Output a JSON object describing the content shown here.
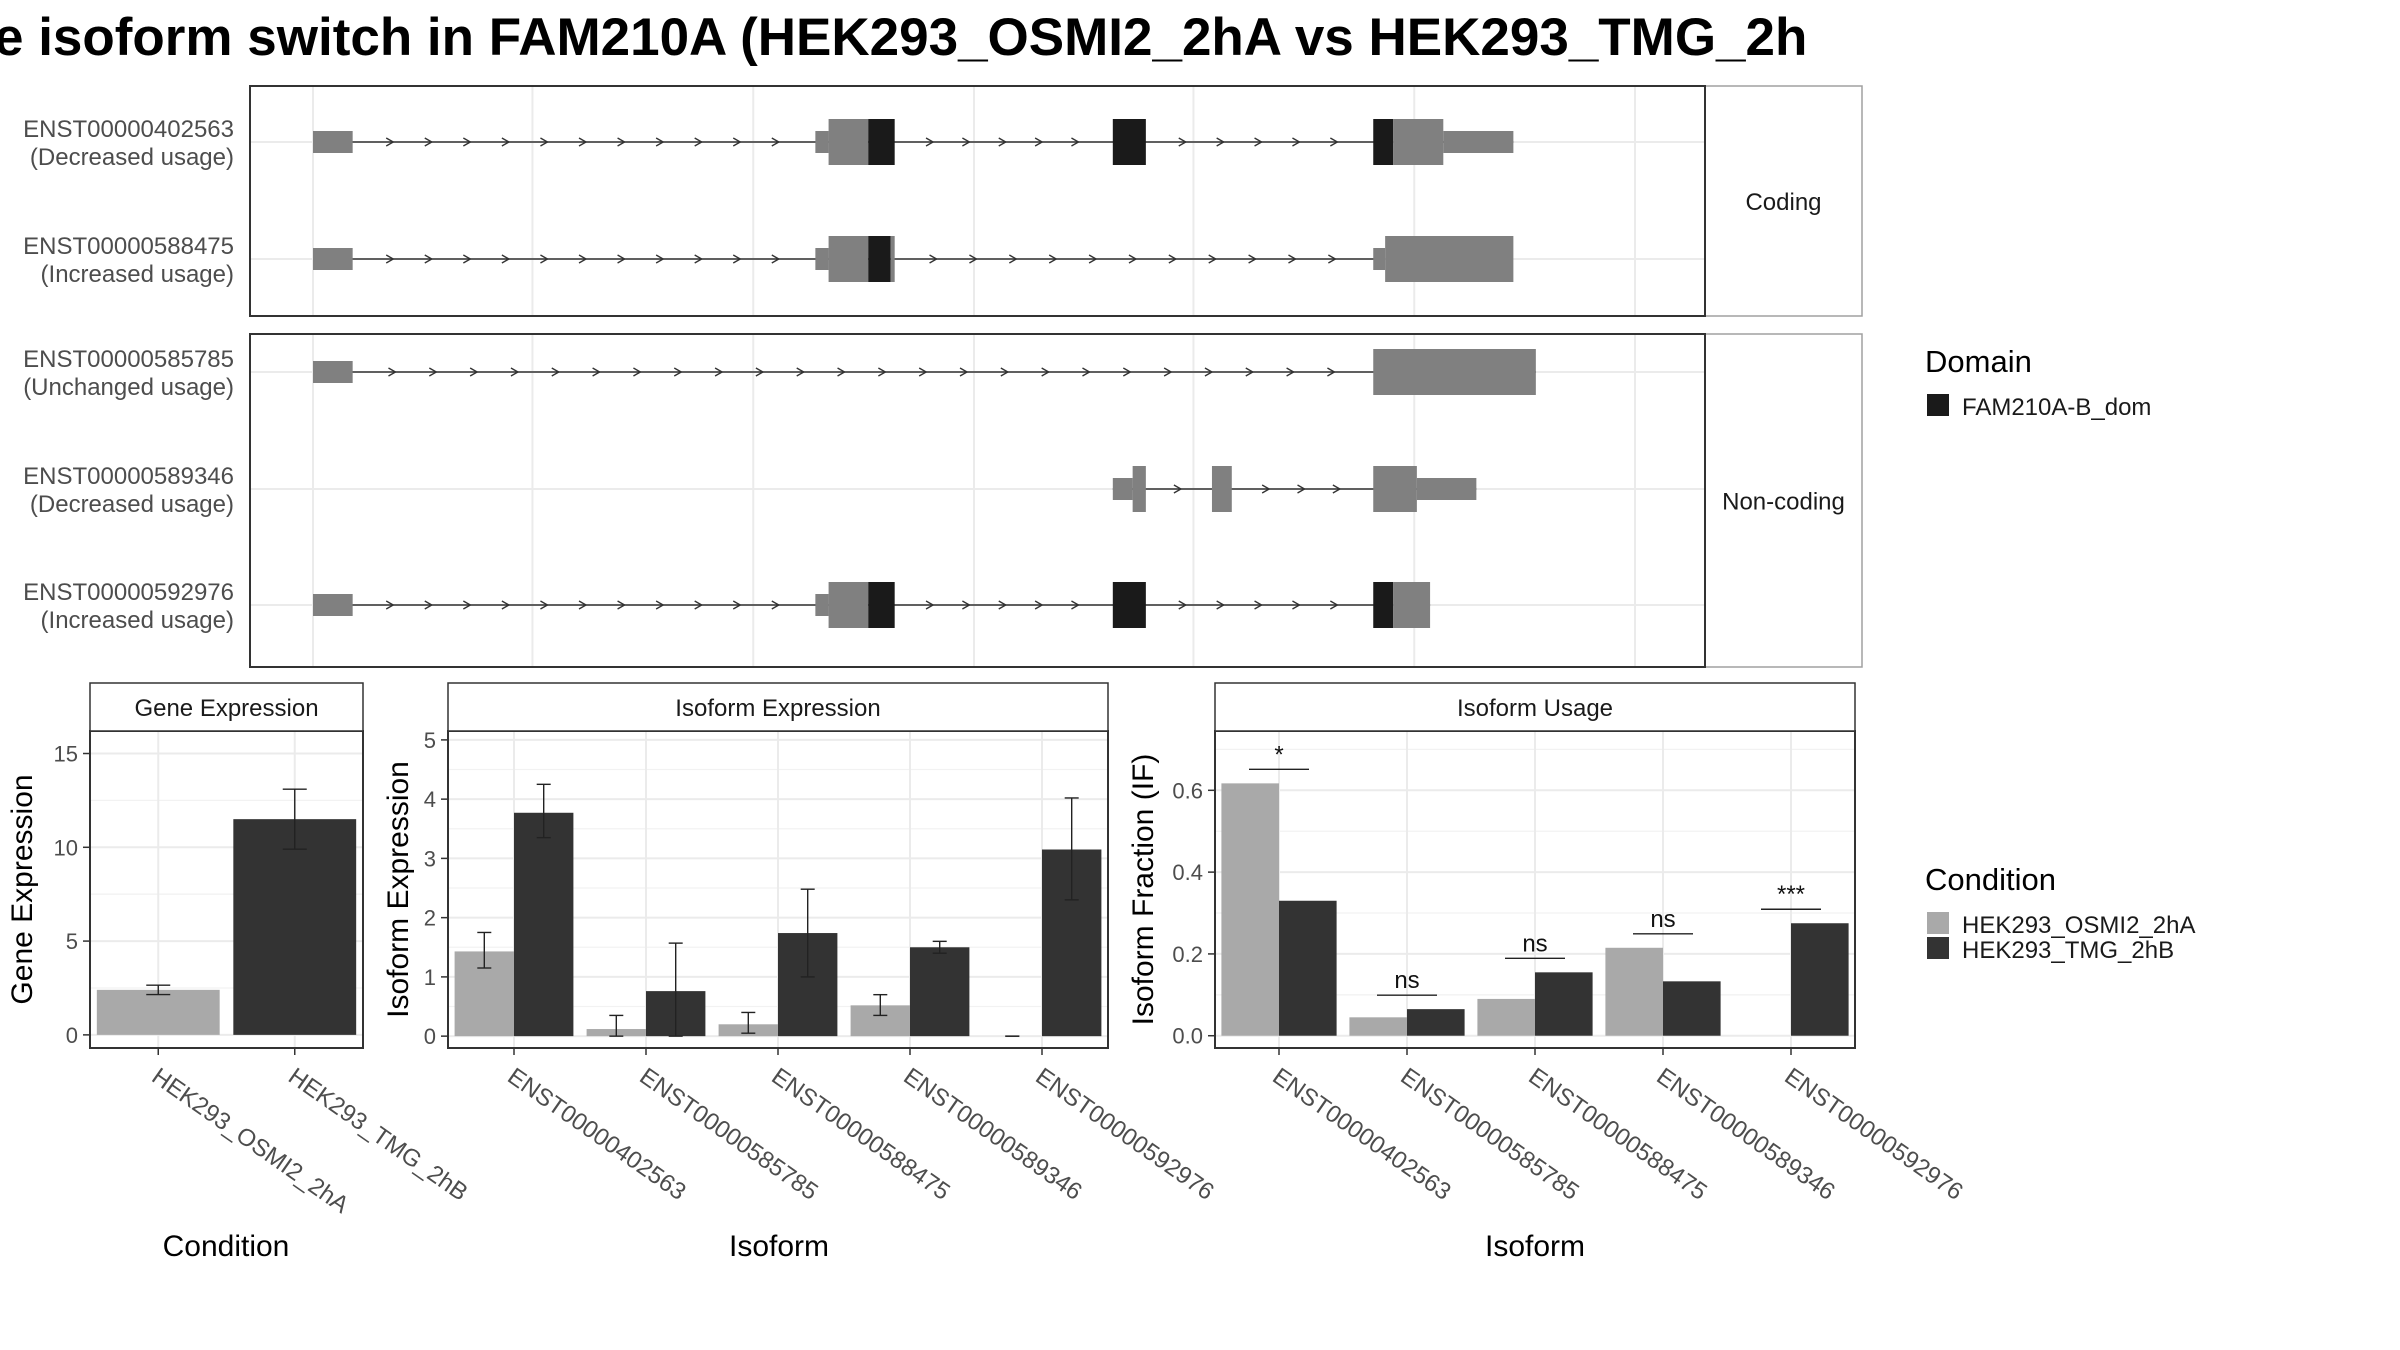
{
  "title": "e isoform switch in FAM210A (HEK293_OSMI2_2hA vs HEK293_TMG_2h",
  "colors": {
    "exon": "#808080",
    "domain": "#1a1a1a",
    "cond_a": "#a9a9a9",
    "cond_b": "#333333",
    "panel_border": "#333333",
    "strip_border": "#a0a0a0",
    "grid": "#ebebeb"
  },
  "chart_data": [
    {
      "type": "gene-structure",
      "x_range": [
        0,
        1000
      ],
      "facets": [
        {
          "label": "Coding",
          "transcripts": [
            {
              "id": "ENST00000402563",
              "usage": "(Decreased usage)",
              "span": [
                0,
                908
              ],
              "exons": [
                [
                  0,
                  30,
                  "s"
                ],
                [
                  380,
                  390,
                  "s"
                ],
                [
                  390,
                  420,
                  "t"
                ],
                [
                  420,
                  440,
                  "d"
                ],
                [
                  605,
                  630,
                  "d"
                ],
                [
                  802,
                  817,
                  "d"
                ],
                [
                  817,
                  855,
                  "t"
                ],
                [
                  855,
                  908,
                  "s"
                ]
              ],
              "arrow_dir": 1
            },
            {
              "id": "ENST00000588475",
              "usage": "(Increased usage)",
              "span": [
                0,
                811
              ],
              "exons": [
                [
                  0,
                  30,
                  "s"
                ],
                [
                  380,
                  390,
                  "s"
                ],
                [
                  390,
                  420,
                  "t"
                ],
                [
                  420,
                  437,
                  "d"
                ],
                [
                  437,
                  440,
                  "t"
                ],
                [
                  802,
                  811,
                  "s"
                ],
                [
                  811,
                  811,
                  "s"
                ]
              ],
              "extra_exons": [
                [
                  811,
                  908,
                  "t"
                ]
              ],
              "arrow_dir": 1
            }
          ]
        },
        {
          "label": "Non-coding",
          "transcripts": [
            {
              "id": "ENST00000585785",
              "usage": "(Unchanged usage)",
              "span": [
                0,
                925
              ],
              "exons": [
                [
                  0,
                  30,
                  "s"
                ],
                [
                  802,
                  925,
                  "t"
                ]
              ],
              "arrow_dir": 1
            },
            {
              "id": "ENST00000589346",
              "usage": "(Decreased usage)",
              "span": [
                605,
                880
              ],
              "exons": [
                [
                  605,
                  620,
                  "s"
                ],
                [
                  620,
                  630,
                  "t"
                ],
                [
                  680,
                  695,
                  "t"
                ],
                [
                  802,
                  835,
                  "t"
                ],
                [
                  835,
                  880,
                  "s"
                ]
              ],
              "arrow_dir": 1
            },
            {
              "id": "ENST00000592976",
              "usage": "(Increased usage)",
              "span": [
                0,
                845
              ],
              "exons": [
                [
                  0,
                  30,
                  "s"
                ],
                [
                  380,
                  390,
                  "s"
                ],
                [
                  390,
                  420,
                  "t"
                ],
                [
                  420,
                  440,
                  "d"
                ],
                [
                  605,
                  630,
                  "d"
                ],
                [
                  802,
                  817,
                  "d"
                ],
                [
                  817,
                  845,
                  "t"
                ]
              ],
              "arrow_dir": 1
            }
          ]
        }
      ],
      "legend": {
        "title": "Domain",
        "items": [
          {
            "name": "FAM210A-B_dom",
            "color": "#1a1a1a"
          }
        ]
      }
    },
    {
      "type": "bar",
      "strip": "Gene Expression",
      "ylabel": "Gene Expression",
      "xlabel": "Condition",
      "categories": [
        "HEK293_OSMI2_2hA",
        "HEK293_TMG_2hB"
      ],
      "values": [
        2.4,
        11.5
      ],
      "errors": [
        [
          2.15,
          2.65
        ],
        [
          9.9,
          13.1
        ]
      ],
      "ylim": [
        -0.7,
        16.2
      ],
      "yticks": [
        0,
        5,
        10,
        15
      ],
      "ytick_labels": [
        "0",
        "5",
        "10",
        "15"
      ]
    },
    {
      "type": "bar",
      "strip": "Isoform Expression",
      "ylabel": "Isoform Expression",
      "xlabel": "Isoform",
      "categories": [
        "ENST00000402563",
        "ENST00000585785",
        "ENST00000588475",
        "ENST00000589346",
        "ENST00000592976"
      ],
      "series": [
        {
          "name": "HEK293_OSMI2_2hA",
          "values": [
            1.43,
            0.12,
            0.2,
            0.52,
            0.0
          ],
          "errors": [
            [
              1.15,
              1.75
            ],
            [
              0.0,
              0.35
            ],
            [
              0.05,
              0.4
            ],
            [
              0.35,
              0.7
            ],
            [
              0.0,
              0.0
            ]
          ]
        },
        {
          "name": "HEK293_TMG_2hB",
          "values": [
            3.77,
            0.76,
            1.74,
            1.5,
            3.15
          ],
          "errors": [
            [
              3.35,
              4.25
            ],
            [
              0.0,
              1.57
            ],
            [
              1.0,
              2.48
            ],
            [
              1.4,
              1.6
            ],
            [
              2.3,
              4.02
            ]
          ]
        }
      ],
      "ylim": [
        -0.2,
        5.15
      ],
      "yticks": [
        0,
        1,
        2,
        3,
        4,
        5
      ],
      "ytick_labels": [
        "0",
        "1",
        "2",
        "3",
        "4",
        "5"
      ]
    },
    {
      "type": "bar",
      "strip": "Isoform Usage",
      "ylabel": "Isoform Fraction (IF)",
      "xlabel": "Isoform",
      "categories": [
        "ENST00000402563",
        "ENST00000585785",
        "ENST00000588475",
        "ENST00000589346",
        "ENST00000592976"
      ],
      "series": [
        {
          "name": "HEK293_OSMI2_2hA",
          "values": [
            0.617,
            0.045,
            0.09,
            0.215,
            0.0
          ]
        },
        {
          "name": "HEK293_TMG_2hB",
          "values": [
            0.33,
            0.065,
            0.155,
            0.133,
            0.275
          ]
        }
      ],
      "significance": [
        "*",
        "ns",
        "ns",
        "ns",
        "***"
      ],
      "ylim": [
        -0.03,
        0.745
      ],
      "yticks": [
        0,
        0.2,
        0.4,
        0.6
      ],
      "ytick_labels": [
        "0.0",
        "0.2",
        "0.4",
        "0.6"
      ],
      "legend": {
        "title": "Condition"
      }
    }
  ]
}
